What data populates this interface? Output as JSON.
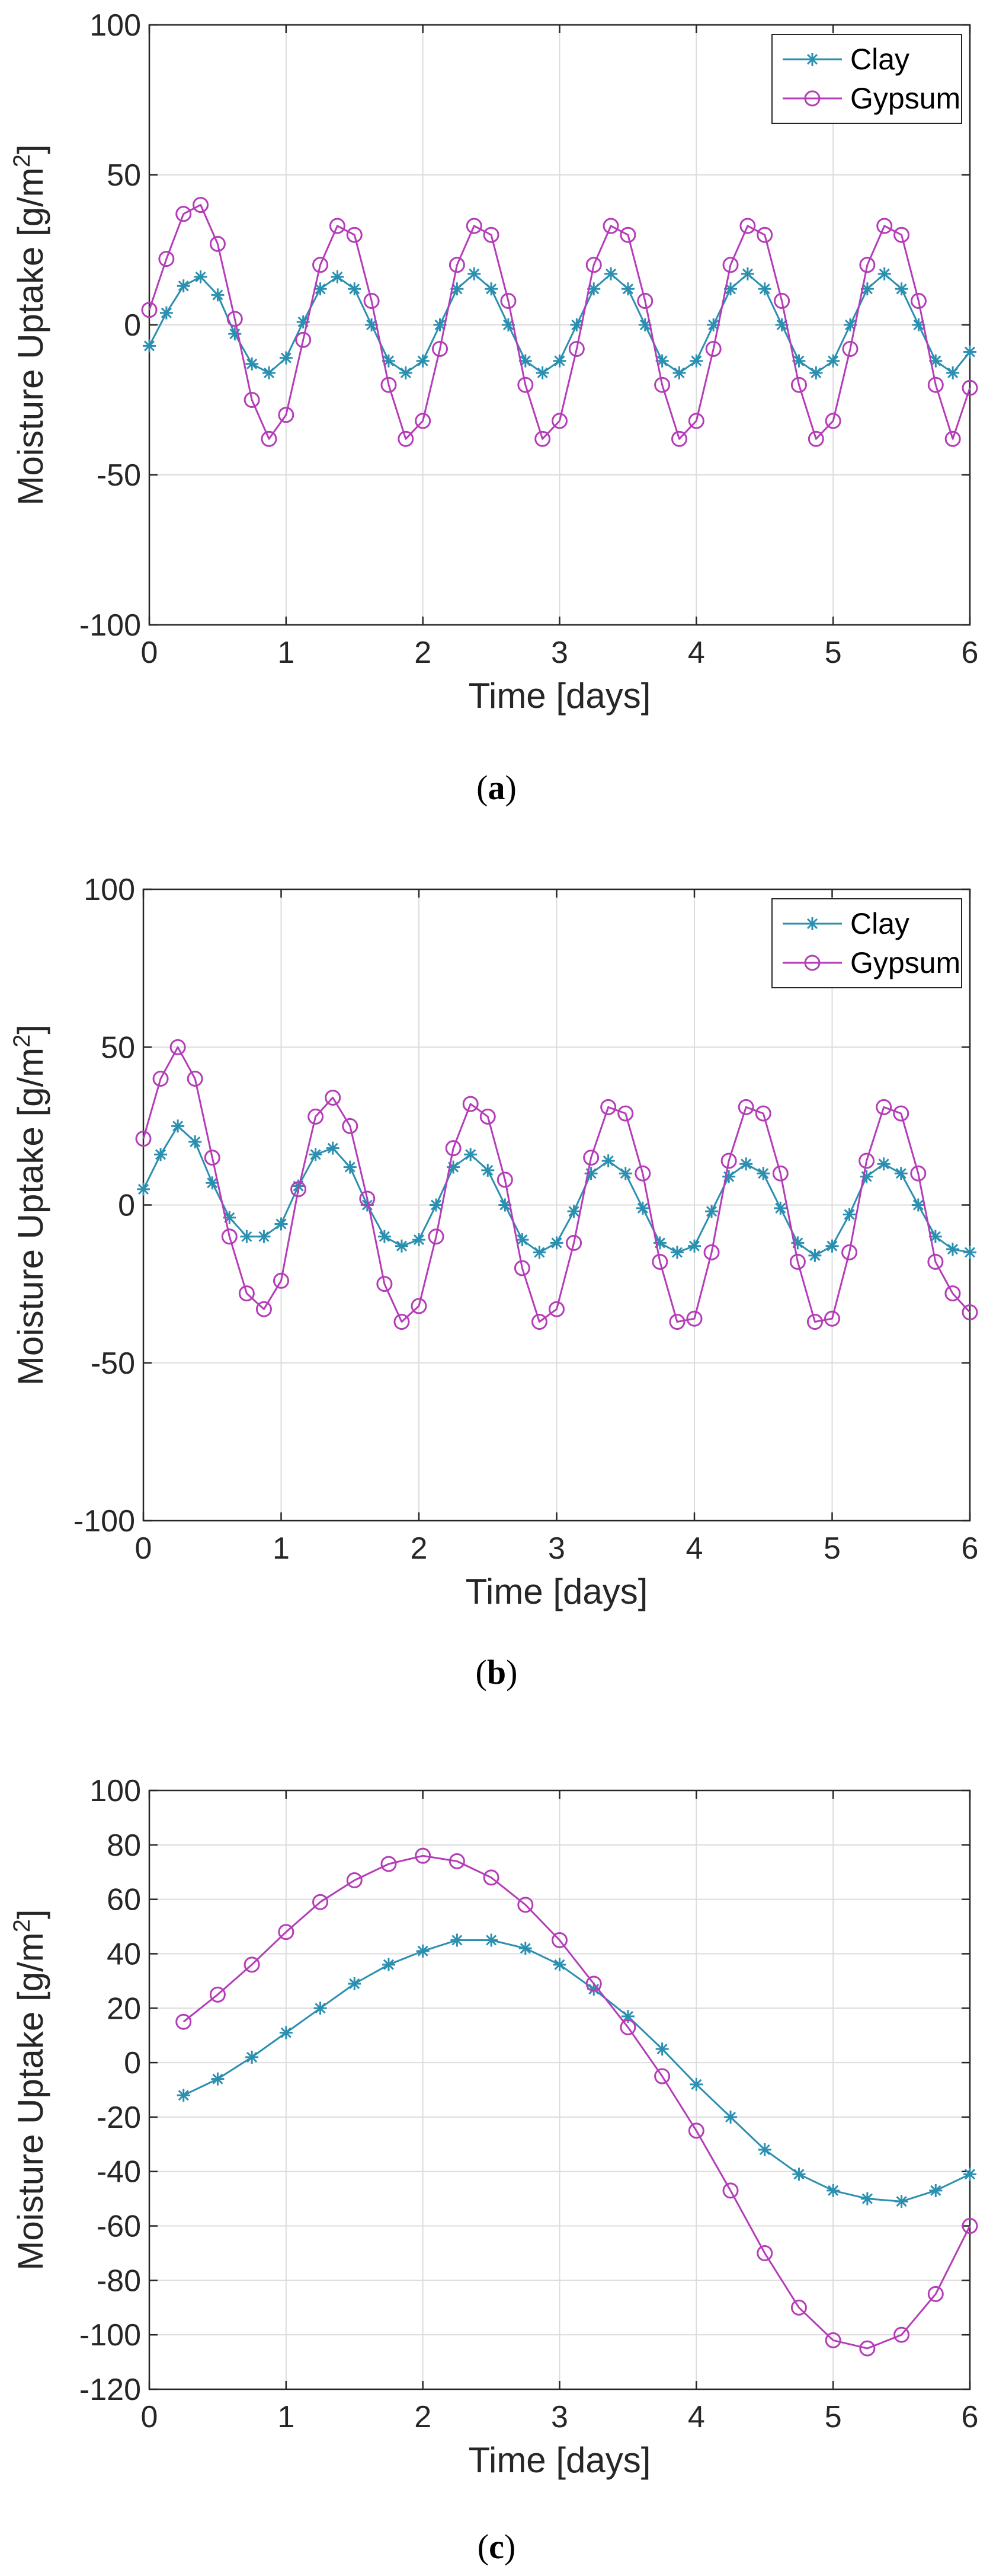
{
  "chart_data": [
    {
      "type": "line",
      "caption": "a",
      "xlabel": "Time [days]",
      "ylabel": "Moisture Uptake [g/m",
      "ylabel_sup": "2",
      "ylabel_close": "]",
      "xlim": [
        0,
        6
      ],
      "ylim": [
        -100,
        100
      ],
      "xticks": [
        0,
        1,
        2,
        3,
        4,
        5,
        6
      ],
      "yticks": [
        -100,
        -50,
        0,
        50,
        100
      ],
      "grid": true,
      "legend": "top-right",
      "series": [
        {
          "name": "Clay",
          "color": "#2b8fb0",
          "marker": "asterisk",
          "x": [
            0,
            0.125,
            0.25,
            0.375,
            0.5,
            0.625,
            0.75,
            0.875,
            1,
            1.125,
            1.25,
            1.375,
            1.5,
            1.625,
            1.75,
            1.875,
            2,
            2.125,
            2.25,
            2.375,
            2.5,
            2.625,
            2.75,
            2.875,
            3,
            3.125,
            3.25,
            3.375,
            3.5,
            3.625,
            3.75,
            3.875,
            4,
            4.125,
            4.25,
            4.375,
            4.5,
            4.625,
            4.75,
            4.875,
            5,
            5.125,
            5.25,
            5.375,
            5.5,
            5.625,
            5.75,
            5.875,
            6
          ],
          "y": [
            -7,
            4,
            13,
            16,
            10,
            -3,
            -13,
            -16,
            -11,
            1,
            12,
            16,
            12,
            0,
            -12,
            -16,
            -12,
            0,
            12,
            17,
            12,
            0,
            -12,
            -16,
            -12,
            0,
            12,
            17,
            12,
            0,
            -12,
            -16,
            -12,
            0,
            12,
            17,
            12,
            0,
            -12,
            -16,
            -12,
            0,
            12,
            17,
            12,
            0,
            -12,
            -16,
            -9
          ]
        },
        {
          "name": "Gypsum",
          "color": "#b53cb8",
          "marker": "circle",
          "x": [
            0,
            0.125,
            0.25,
            0.375,
            0.5,
            0.625,
            0.75,
            0.875,
            1,
            1.125,
            1.25,
            1.375,
            1.5,
            1.625,
            1.75,
            1.875,
            2,
            2.125,
            2.25,
            2.375,
            2.5,
            2.625,
            2.75,
            2.875,
            3,
            3.125,
            3.25,
            3.375,
            3.5,
            3.625,
            3.75,
            3.875,
            4,
            4.125,
            4.25,
            4.375,
            4.5,
            4.625,
            4.75,
            4.875,
            5,
            5.125,
            5.25,
            5.375,
            5.5,
            5.625,
            5.75,
            5.875,
            6
          ],
          "y": [
            5,
            22,
            37,
            40,
            27,
            2,
            -25,
            -38,
            -30,
            -5,
            20,
            33,
            30,
            8,
            -20,
            -38,
            -32,
            -8,
            20,
            33,
            30,
            8,
            -20,
            -38,
            -32,
            -8,
            20,
            33,
            30,
            8,
            -20,
            -38,
            -32,
            -8,
            20,
            33,
            30,
            8,
            -20,
            -38,
            -32,
            -8,
            20,
            33,
            30,
            8,
            -20,
            -38,
            -21
          ]
        }
      ]
    },
    {
      "type": "line",
      "caption": "b",
      "xlabel": "Time [days]",
      "ylabel": "Moisture Uptake [g/m",
      "ylabel_sup": "2",
      "ylabel_close": "]",
      "xlim": [
        0,
        6
      ],
      "ylim": [
        -100,
        100
      ],
      "xticks": [
        0,
        1,
        2,
        3,
        4,
        5,
        6
      ],
      "yticks": [
        -100,
        -50,
        0,
        50,
        100
      ],
      "grid": true,
      "legend": "top-right",
      "series": [
        {
          "name": "Clay",
          "color": "#2b8fb0",
          "marker": "asterisk",
          "x": [
            0,
            0.125,
            0.25,
            0.375,
            0.5,
            0.625,
            0.75,
            0.875,
            1,
            1.125,
            1.25,
            1.375,
            1.5,
            1.625,
            1.75,
            1.875,
            2,
            2.125,
            2.25,
            2.375,
            2.5,
            2.625,
            2.75,
            2.875,
            3,
            3.125,
            3.25,
            3.375,
            3.5,
            3.625,
            3.75,
            3.875,
            4,
            4.125,
            4.25,
            4.375,
            4.5,
            4.625,
            4.75,
            4.875,
            5,
            5.125,
            5.25,
            5.375,
            5.5,
            5.625,
            5.75,
            5.875,
            6
          ],
          "y": [
            5,
            16,
            25,
            20,
            7,
            -4,
            -10,
            -10,
            -6,
            6,
            16,
            18,
            12,
            0,
            -10,
            -13,
            -11,
            0,
            12,
            16,
            11,
            0,
            -11,
            -15,
            -12,
            -2,
            10,
            14,
            10,
            -1,
            -12,
            -15,
            -13,
            -2,
            9,
            13,
            10,
            -1,
            -12,
            -16,
            -13,
            -3,
            9,
            13,
            10,
            0,
            -10,
            -14,
            -15
          ]
        },
        {
          "name": "Gypsum",
          "color": "#b53cb8",
          "marker": "circle",
          "x": [
            0,
            0.125,
            0.25,
            0.375,
            0.5,
            0.625,
            0.75,
            0.875,
            1,
            1.125,
            1.25,
            1.375,
            1.5,
            1.625,
            1.75,
            1.875,
            2,
            2.125,
            2.25,
            2.375,
            2.5,
            2.625,
            2.75,
            2.875,
            3,
            3.125,
            3.25,
            3.375,
            3.5,
            3.625,
            3.75,
            3.875,
            4,
            4.125,
            4.25,
            4.375,
            4.5,
            4.625,
            4.75,
            4.875,
            5,
            5.125,
            5.25,
            5.375,
            5.5,
            5.625,
            5.75,
            5.875,
            6
          ],
          "y": [
            21,
            40,
            50,
            40,
            15,
            -10,
            -28,
            -33,
            -24,
            5,
            28,
            34,
            25,
            2,
            -25,
            -37,
            -32,
            -10,
            18,
            32,
            28,
            8,
            -20,
            -37,
            -33,
            -12,
            15,
            31,
            29,
            10,
            -18,
            -37,
            -36,
            -15,
            14,
            31,
            29,
            10,
            -18,
            -37,
            -36,
            -15,
            14,
            31,
            29,
            10,
            -18,
            -28,
            -34
          ]
        }
      ]
    },
    {
      "type": "line",
      "caption": "c",
      "xlabel": "Time [days]",
      "ylabel": "Moisture Uptake [g/m",
      "ylabel_sup": "2",
      "ylabel_close": "]",
      "xlim": [
        0,
        6
      ],
      "ylim": [
        -120,
        100
      ],
      "xticks": [
        0,
        1,
        2,
        3,
        4,
        5,
        6
      ],
      "yticks": [
        -120,
        -100,
        -80,
        -60,
        -40,
        -20,
        0,
        20,
        40,
        60,
        80,
        100
      ],
      "grid": true,
      "legend": "none",
      "series": [
        {
          "name": "Clay",
          "color": "#2b8fb0",
          "marker": "asterisk",
          "x": [
            0.25,
            0.5,
            0.75,
            1,
            1.25,
            1.5,
            1.75,
            2,
            2.25,
            2.5,
            2.75,
            3,
            3.25,
            3.5,
            3.75,
            4,
            4.25,
            4.5,
            4.75,
            5,
            5.25,
            5.5,
            5.75,
            6
          ],
          "y": [
            -12,
            -6,
            2,
            11,
            20,
            29,
            36,
            41,
            45,
            45,
            42,
            36,
            27,
            17,
            5,
            -8,
            -20,
            -32,
            -41,
            -47,
            -50,
            -51,
            -47,
            -41
          ]
        },
        {
          "name": "Gypsum",
          "color": "#b53cb8",
          "marker": "circle",
          "x": [
            0.25,
            0.5,
            0.75,
            1,
            1.25,
            1.5,
            1.75,
            2,
            2.25,
            2.5,
            2.75,
            3,
            3.25,
            3.5,
            3.75,
            4,
            4.25,
            4.5,
            4.75,
            5,
            5.25,
            5.5,
            5.75,
            6
          ],
          "y": [
            15,
            25,
            36,
            48,
            59,
            67,
            73,
            76,
            74,
            68,
            58,
            45,
            29,
            13,
            -5,
            -25,
            -47,
            -70,
            -90,
            -102,
            -105,
            -100,
            -85,
            -60
          ]
        }
      ]
    }
  ]
}
